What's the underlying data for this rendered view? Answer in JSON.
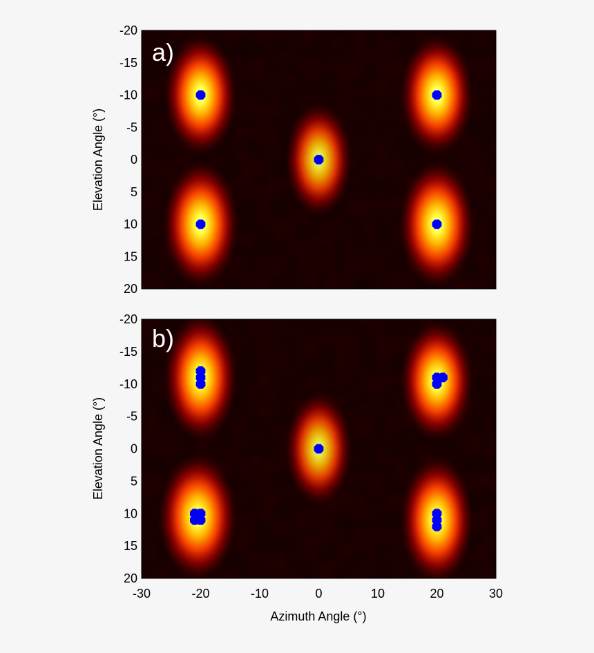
{
  "chart_data": [
    {
      "type": "heatmap",
      "panel_label": "a)",
      "xlabel": "",
      "ylabel": "Elevation Angle (°)",
      "xlim": [
        -30,
        30
      ],
      "ylim": [
        -20,
        20
      ],
      "y_inverted": true,
      "x_ticks": [],
      "y_ticks": [
        "-20",
        "-15",
        "-10",
        "-5",
        "0",
        "5",
        "10",
        "15",
        "20"
      ],
      "colormap": "hot",
      "background_color": "#240000",
      "marker_color": "#0000ff",
      "sources": [
        {
          "az": -20,
          "el": -10,
          "spread_az": 2.4,
          "spread_el": 3.6,
          "intensity": 1.0
        },
        {
          "az": 20,
          "el": -10,
          "spread_az": 2.4,
          "spread_el": 3.6,
          "intensity": 1.0
        },
        {
          "az": 0,
          "el": 0,
          "spread_az": 2.2,
          "spread_el": 3.4,
          "intensity": 0.9
        },
        {
          "az": -20,
          "el": 10,
          "spread_az": 2.5,
          "spread_el": 3.8,
          "intensity": 1.0
        },
        {
          "az": 20,
          "el": 10,
          "spread_az": 2.5,
          "spread_el": 3.8,
          "intensity": 1.0
        }
      ],
      "markers": [
        {
          "az": -20,
          "el": -10
        },
        {
          "az": 20,
          "el": -10
        },
        {
          "az": 0,
          "el": 0
        },
        {
          "az": -20,
          "el": 10
        },
        {
          "az": 20,
          "el": 10
        }
      ]
    },
    {
      "type": "heatmap",
      "panel_label": "b)",
      "xlabel": "Azimuth Angle (°)",
      "ylabel": "Elevation Angle (°)",
      "xlim": [
        -30,
        30
      ],
      "ylim": [
        -20,
        20
      ],
      "y_inverted": true,
      "x_ticks": [
        "-30",
        "-20",
        "-10",
        "0",
        "10",
        "20",
        "30"
      ],
      "y_ticks": [
        "-20",
        "-15",
        "-10",
        "-5",
        "0",
        "5",
        "10",
        "15",
        "20"
      ],
      "colormap": "hot",
      "background_color": "#240000",
      "marker_color": "#0000ff",
      "sources": [
        {
          "az": -20,
          "el": -11,
          "spread_az": 2.4,
          "spread_el": 3.8,
          "intensity": 1.0
        },
        {
          "az": 20,
          "el": -10.5,
          "spread_az": 2.4,
          "spread_el": 3.6,
          "intensity": 1.0
        },
        {
          "az": 0,
          "el": 0,
          "spread_az": 2.2,
          "spread_el": 3.4,
          "intensity": 0.9
        },
        {
          "az": -20.5,
          "el": 10.5,
          "spread_az": 2.6,
          "spread_el": 3.8,
          "intensity": 1.0
        },
        {
          "az": 20,
          "el": 11,
          "spread_az": 2.4,
          "spread_el": 3.8,
          "intensity": 1.0
        }
      ],
      "markers": [
        {
          "az": -20,
          "el": -12
        },
        {
          "az": -20,
          "el": -11
        },
        {
          "az": -20,
          "el": -10
        },
        {
          "az": 20,
          "el": -10
        },
        {
          "az": 20,
          "el": -11
        },
        {
          "az": 21,
          "el": -11
        },
        {
          "az": 0,
          "el": 0
        },
        {
          "az": -21,
          "el": 10
        },
        {
          "az": -21,
          "el": 11
        },
        {
          "az": -20,
          "el": 10
        },
        {
          "az": -20,
          "el": 11
        },
        {
          "az": 20,
          "el": 10
        },
        {
          "az": 20,
          "el": 11
        },
        {
          "az": 20,
          "el": 12
        }
      ]
    }
  ]
}
